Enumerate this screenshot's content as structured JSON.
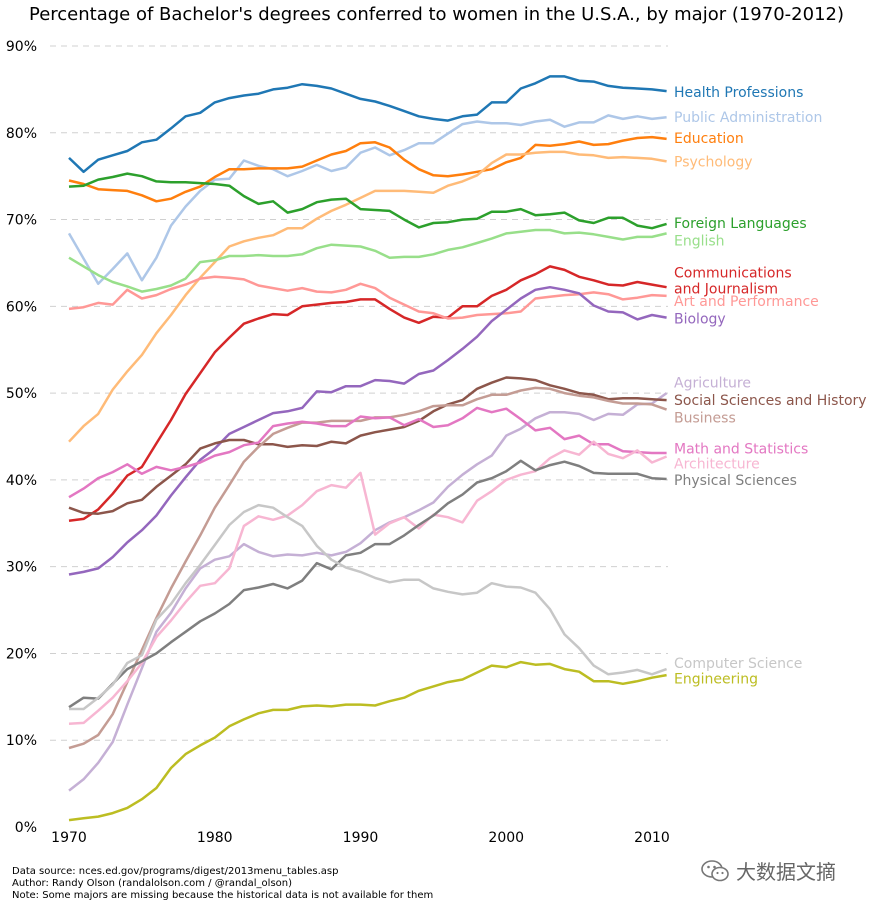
{
  "title": "Percentage of Bachelor's degrees conferred to women in the U.S.A., by major (1970-2012)",
  "footer": {
    "source": "Data source: nces.ed.gov/programs/digest/2013menu_tables.asp",
    "author": "Author: Randy Olson (randalolson.com / @randal_olson)",
    "note": "Note: Some majors are missing because the historical data is not available for them"
  },
  "watermark": {
    "text": "大数据文摘",
    "icon": "wechat-icon"
  },
  "chart_data": {
    "type": "line",
    "title": "Percentage of Bachelor's degrees conferred to women in the U.S.A., by major (1970-2012)",
    "xlabel": "",
    "ylabel": "",
    "xlim": [
      1970,
      2011
    ],
    "ylim": [
      0,
      90
    ],
    "grid": "horizontal dashed",
    "legend": "labels at right end of lines",
    "x_ticks": [
      "1970",
      "1980",
      "1990",
      "2000",
      "2010"
    ],
    "y_ticks": [
      "0%",
      "10%",
      "20%",
      "30%",
      "40%",
      "50%",
      "60%",
      "70%",
      "80%",
      "90%"
    ],
    "y_tick_values": [
      0,
      10,
      20,
      30,
      40,
      50,
      60,
      70,
      80,
      90
    ],
    "x_tick_values": [
      1970,
      1980,
      1990,
      2000,
      2010
    ],
    "x": [
      1970,
      1971,
      1972,
      1973,
      1974,
      1975,
      1976,
      1977,
      1978,
      1979,
      1980,
      1981,
      1982,
      1983,
      1984,
      1985,
      1986,
      1987,
      1988,
      1989,
      1990,
      1991,
      1992,
      1993,
      1994,
      1995,
      1996,
      1997,
      1998,
      1999,
      2000,
      2001,
      2002,
      2003,
      2004,
      2005,
      2006,
      2007,
      2008,
      2009,
      2010,
      2011
    ],
    "series": [
      {
        "name": "Health Professions",
        "color": "#1f77b4",
        "label_y": 84.7,
        "values": [
          77.1,
          75.5,
          76.9,
          77.4,
          77.9,
          78.9,
          79.2,
          80.5,
          81.9,
          82.3,
          83.5,
          84.0,
          84.3,
          84.5,
          85.0,
          85.2,
          85.6,
          85.4,
          85.1,
          84.5,
          83.9,
          83.6,
          83.1,
          82.5,
          81.9,
          81.6,
          81.4,
          81.9,
          82.1,
          83.5,
          83.5,
          85.1,
          85.7,
          86.5,
          86.5,
          86.0,
          85.9,
          85.4,
          85.2,
          85.1,
          85.0,
          84.8
        ]
      },
      {
        "name": "Public Administration",
        "color": "#aec7e8",
        "label_y": 81.8,
        "values": [
          68.4,
          65.5,
          62.6,
          64.3,
          66.1,
          63.0,
          65.6,
          69.3,
          71.5,
          73.3,
          74.6,
          74.7,
          76.8,
          76.2,
          75.8,
          75.0,
          75.6,
          76.3,
          75.6,
          76.0,
          77.7,
          78.3,
          77.4,
          78.0,
          78.8,
          78.8,
          79.9,
          81.0,
          81.3,
          81.1,
          81.1,
          80.9,
          81.3,
          81.5,
          80.7,
          81.2,
          81.2,
          82.0,
          81.6,
          81.9,
          81.6,
          81.8
        ]
      },
      {
        "name": "Education",
        "color": "#ff7f0e",
        "label_y": 79.4,
        "values": [
          74.5,
          74.1,
          73.5,
          73.4,
          73.3,
          72.8,
          72.1,
          72.4,
          73.2,
          73.8,
          74.9,
          75.8,
          75.8,
          75.9,
          75.9,
          75.9,
          76.1,
          76.8,
          77.5,
          77.9,
          78.8,
          78.9,
          78.3,
          76.9,
          75.8,
          75.1,
          75.0,
          75.2,
          75.5,
          75.8,
          76.6,
          77.1,
          78.6,
          78.5,
          78.7,
          79.0,
          78.6,
          78.7,
          79.1,
          79.4,
          79.5,
          79.3
        ]
      },
      {
        "name": "Psychology",
        "color": "#ffbb78",
        "label_y": 76.7,
        "values": [
          44.4,
          46.2,
          47.6,
          50.4,
          52.5,
          54.4,
          56.9,
          59.0,
          61.3,
          63.3,
          65.1,
          66.9,
          67.5,
          67.9,
          68.2,
          69.0,
          69.0,
          70.1,
          71.0,
          71.7,
          72.5,
          73.3,
          73.3,
          73.3,
          73.2,
          73.1,
          73.9,
          74.4,
          75.1,
          76.5,
          77.5,
          77.5,
          77.7,
          77.8,
          77.8,
          77.5,
          77.4,
          77.1,
          77.2,
          77.1,
          77.0,
          76.7
        ]
      },
      {
        "name": "Foreign Languages",
        "color": "#2ca02c",
        "label_y": 69.6,
        "values": [
          73.8,
          73.9,
          74.6,
          74.9,
          75.3,
          75.0,
          74.4,
          74.3,
          74.3,
          74.2,
          74.1,
          73.9,
          72.7,
          71.8,
          72.1,
          70.8,
          71.2,
          72.0,
          72.3,
          72.4,
          71.2,
          71.1,
          71.0,
          70.0,
          69.1,
          69.6,
          69.7,
          70.0,
          70.1,
          70.9,
          70.9,
          71.2,
          70.5,
          70.6,
          70.8,
          69.9,
          69.6,
          70.2,
          70.2,
          69.3,
          69.0,
          69.5
        ]
      },
      {
        "name": "English",
        "color": "#98df8a",
        "label_y": 67.6,
        "values": [
          65.6,
          64.6,
          63.6,
          62.8,
          62.3,
          61.7,
          62.0,
          62.4,
          63.2,
          65.1,
          65.3,
          65.8,
          65.8,
          65.9,
          65.8,
          65.8,
          66.0,
          66.7,
          67.1,
          67.0,
          66.9,
          66.4,
          65.6,
          65.7,
          65.7,
          66.0,
          66.5,
          66.8,
          67.3,
          67.8,
          68.4,
          68.6,
          68.8,
          68.8,
          68.4,
          68.5,
          68.3,
          68.0,
          67.7,
          68.0,
          68.0,
          68.4
        ]
      },
      {
        "name": "Communications\nand Journalism",
        "color": "#d62728",
        "label_y": 63.0,
        "values": [
          35.3,
          35.5,
          36.6,
          38.4,
          40.5,
          41.5,
          44.2,
          46.9,
          49.9,
          52.3,
          54.7,
          56.4,
          58.0,
          58.6,
          59.1,
          59.0,
          60.0,
          60.2,
          60.4,
          60.5,
          60.8,
          60.8,
          59.7,
          58.7,
          58.1,
          58.8,
          58.7,
          60.0,
          60.0,
          61.2,
          61.9,
          63.0,
          63.7,
          64.6,
          64.2,
          63.4,
          63.0,
          62.5,
          62.4,
          62.8,
          62.5,
          62.2
        ]
      },
      {
        "name": "Art and Performance",
        "color": "#ff9896",
        "label_y": 60.6,
        "values": [
          59.7,
          59.9,
          60.4,
          60.2,
          61.9,
          60.9,
          61.3,
          62.0,
          62.5,
          63.2,
          63.4,
          63.3,
          63.1,
          62.4,
          62.1,
          61.8,
          62.1,
          61.7,
          61.6,
          61.9,
          62.6,
          62.1,
          61.0,
          60.2,
          59.4,
          59.2,
          58.6,
          58.7,
          59.0,
          59.1,
          59.2,
          59.4,
          60.9,
          61.1,
          61.3,
          61.4,
          61.6,
          61.4,
          60.8,
          61.0,
          61.3,
          61.2
        ]
      },
      {
        "name": "Biology",
        "color": "#9467bd",
        "label_y": 58.6,
        "values": [
          29.1,
          29.4,
          29.8,
          31.1,
          32.8,
          34.2,
          35.9,
          38.2,
          40.3,
          42.3,
          43.6,
          45.3,
          46.1,
          46.9,
          47.7,
          47.9,
          48.3,
          50.2,
          50.1,
          50.8,
          50.8,
          51.5,
          51.4,
          51.1,
          52.2,
          52.6,
          53.8,
          55.1,
          56.5,
          58.3,
          59.6,
          60.9,
          61.9,
          62.2,
          61.9,
          61.5,
          60.1,
          59.4,
          59.3,
          58.5,
          59.0,
          58.7
        ]
      },
      {
        "name": "Agriculture",
        "color": "#c5b0d5",
        "label_y": 51.2,
        "values": [
          4.2,
          5.5,
          7.4,
          9.8,
          14.1,
          18.3,
          22.5,
          24.7,
          27.5,
          29.8,
          30.8,
          31.2,
          32.6,
          31.7,
          31.2,
          31.4,
          31.3,
          31.6,
          31.3,
          31.7,
          32.7,
          34.2,
          35.1,
          35.7,
          36.5,
          37.4,
          39.2,
          40.6,
          41.8,
          42.8,
          45.1,
          45.9,
          47.1,
          47.8,
          47.8,
          47.6,
          46.9,
          47.6,
          47.5,
          48.7,
          48.8,
          50.0
        ]
      },
      {
        "name": "Social Sciences and History",
        "color": "#8c564b",
        "label_y": 49.2,
        "values": [
          36.8,
          36.2,
          36.1,
          36.4,
          37.3,
          37.7,
          39.2,
          40.5,
          41.8,
          43.6,
          44.2,
          44.6,
          44.6,
          44.1,
          44.1,
          43.8,
          44.0,
          43.9,
          44.4,
          44.2,
          45.1,
          45.5,
          45.8,
          46.1,
          46.8,
          47.9,
          48.7,
          49.2,
          50.5,
          51.2,
          51.8,
          51.7,
          51.5,
          50.9,
          50.5,
          50.0,
          49.8,
          49.3,
          49.4,
          49.4,
          49.3,
          49.2
        ]
      },
      {
        "name": "Business",
        "color": "#c49c94",
        "label_y": 47.2,
        "values": [
          9.1,
          9.6,
          10.6,
          13.0,
          16.7,
          20.4,
          24.1,
          27.5,
          30.6,
          33.6,
          36.8,
          39.4,
          42.1,
          43.8,
          45.3,
          46.0,
          46.6,
          46.6,
          46.8,
          46.8,
          46.8,
          47.2,
          47.2,
          47.5,
          47.9,
          48.5,
          48.6,
          48.6,
          49.3,
          49.8,
          49.8,
          50.3,
          50.6,
          50.5,
          50.0,
          49.7,
          49.5,
          49.1,
          48.8,
          48.8,
          48.7,
          48.1
        ]
      },
      {
        "name": "Math and Statistics",
        "color": "#e377c2",
        "label_y": 43.6,
        "values": [
          38.0,
          39.0,
          40.2,
          40.9,
          41.8,
          40.7,
          41.5,
          41.1,
          41.5,
          42.0,
          42.8,
          43.2,
          44.0,
          44.3,
          46.2,
          46.5,
          46.7,
          46.5,
          46.2,
          46.2,
          47.3,
          47.1,
          47.2,
          46.3,
          47.0,
          46.1,
          46.3,
          47.1,
          48.3,
          47.8,
          48.2,
          47.0,
          45.7,
          46.0,
          44.7,
          45.1,
          44.1,
          44.1,
          43.3,
          43.2,
          43.1,
          43.1
        ]
      },
      {
        "name": "Architecture",
        "color": "#f7b6d2",
        "label_y": 41.9,
        "values": [
          11.9,
          12.0,
          13.4,
          14.9,
          16.8,
          18.9,
          21.9,
          23.8,
          25.9,
          27.8,
          28.1,
          29.8,
          34.7,
          35.8,
          35.4,
          35.9,
          37.1,
          38.7,
          39.4,
          39.1,
          40.8,
          33.7,
          35.0,
          35.7,
          34.4,
          36.0,
          35.7,
          35.1,
          37.6,
          38.7,
          40.0,
          40.6,
          41.0,
          42.5,
          43.4,
          42.9,
          44.4,
          43.0,
          42.5,
          43.4,
          42.0,
          42.7
        ]
      },
      {
        "name": "Physical Sciences",
        "color": "#7f7f7f",
        "label_y": 40.0,
        "values": [
          13.8,
          14.9,
          14.8,
          16.5,
          18.2,
          19.1,
          20.0,
          21.3,
          22.5,
          23.7,
          24.6,
          25.7,
          27.3,
          27.6,
          28.0,
          27.5,
          28.4,
          30.4,
          29.7,
          31.3,
          31.6,
          32.6,
          32.6,
          33.6,
          34.8,
          35.9,
          37.3,
          38.3,
          39.7,
          40.2,
          41.0,
          42.2,
          41.1,
          41.7,
          42.1,
          41.6,
          40.8,
          40.7,
          40.7,
          40.7,
          40.2,
          40.1
        ]
      },
      {
        "name": "Computer Science",
        "color": "#c7c7c7",
        "label_y": 18.9,
        "values": [
          13.6,
          13.6,
          14.9,
          16.4,
          18.9,
          19.8,
          23.9,
          25.7,
          28.1,
          30.2,
          32.5,
          34.8,
          36.3,
          37.1,
          36.8,
          35.7,
          34.7,
          32.4,
          30.8,
          29.9,
          29.4,
          28.7,
          28.2,
          28.5,
          28.5,
          27.5,
          27.1,
          26.8,
          27.0,
          28.1,
          27.7,
          27.6,
          27.0,
          25.1,
          22.2,
          20.6,
          18.6,
          17.6,
          17.8,
          18.1,
          17.6,
          18.2
        ]
      },
      {
        "name": "Engineering",
        "color": "#bcbd22",
        "label_y": 17.1,
        "values": [
          0.8,
          1.0,
          1.2,
          1.6,
          2.2,
          3.2,
          4.5,
          6.8,
          8.4,
          9.4,
          10.3,
          11.6,
          12.4,
          13.1,
          13.5,
          13.5,
          13.9,
          14.0,
          13.9,
          14.1,
          14.1,
          14.0,
          14.5,
          14.9,
          15.7,
          16.2,
          16.7,
          17.0,
          17.8,
          18.6,
          18.4,
          19.0,
          18.7,
          18.8,
          18.2,
          17.9,
          16.8,
          16.8,
          16.5,
          16.8,
          17.2,
          17.5
        ]
      }
    ]
  }
}
